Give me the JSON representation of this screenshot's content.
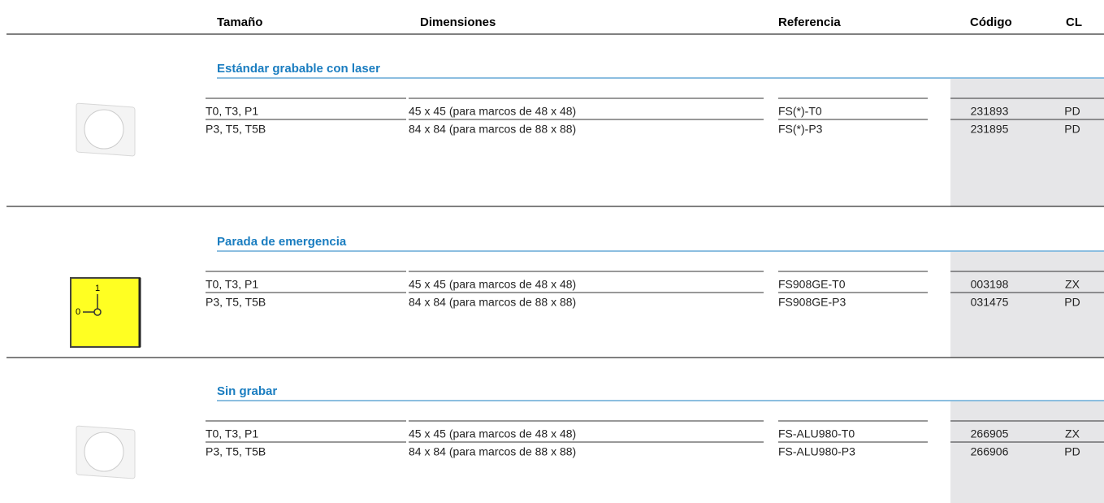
{
  "header": {
    "columns": [
      "Tamaño",
      "Dimensiones",
      "Referencia",
      "Código",
      "CL"
    ]
  },
  "sections": [
    {
      "title": "Estándar grabable con laser",
      "rows": [
        [
          "T0, T3, P1",
          "45 x 45 (para marcos de 48 x 48)",
          "FS(*)-T0",
          "231893",
          "PD"
        ],
        [
          "P3, T5, T5B",
          "84 x 84 (para marcos de 88 x 88)",
          "FS(*)-P3",
          "231895",
          "PD"
        ]
      ]
    },
    {
      "title": "Parada de emergencia",
      "icon_labels": [
        "0",
        "1"
      ],
      "rows": [
        [
          "T0, T3, P1",
          "45 x 45 (para marcos de 48 x 48)",
          "FS908GE-T0",
          "003198",
          "ZX"
        ],
        [
          "P3, T5, T5B",
          "84 x 84 (para marcos de 88 x 88)",
          "FS908GE-P3",
          "031475",
          "PD"
        ]
      ]
    },
    {
      "title": "Sin grabar",
      "rows": [
        [
          "T0, T3, P1",
          "45 x 45 (para marcos de 48 x 48)",
          "FS-ALU980-T0",
          "266905",
          "ZX"
        ],
        [
          "P3, T5, T5B",
          "84 x 84 (para marcos de 88 x 88)",
          "FS-ALU980-P3",
          "266906",
          "PD"
        ]
      ]
    }
  ]
}
